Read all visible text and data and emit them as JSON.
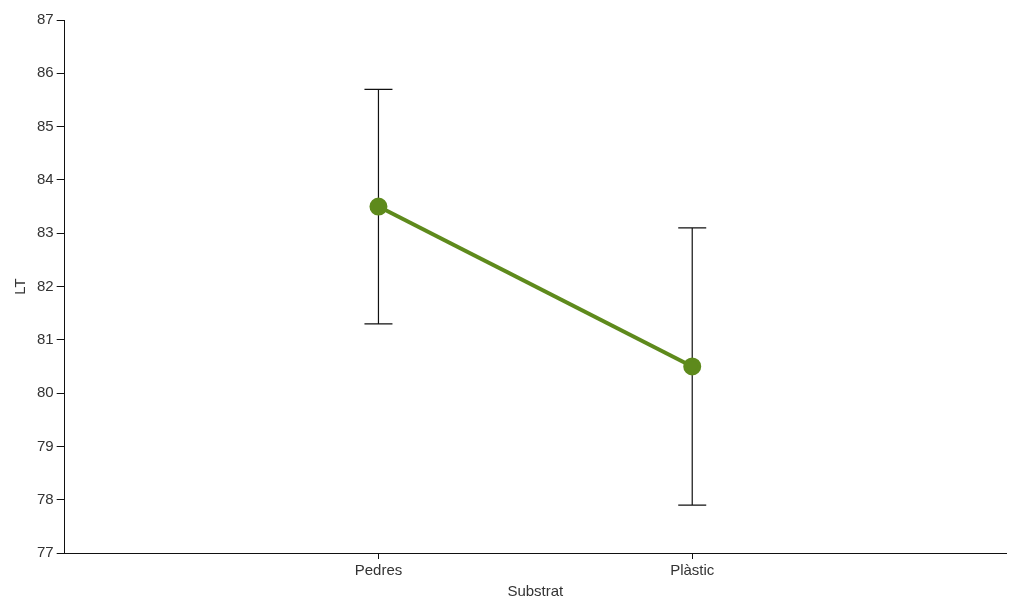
{
  "chart_data": {
    "type": "line",
    "xlabel": "Substrat",
    "ylabel": "LT",
    "categories": [
      "Pedres",
      "Plàstic"
    ],
    "series": [
      {
        "color": "#5e8a1c",
        "values": [
          83.5,
          80.5
        ],
        "errors": [
          [
            81.3,
            85.7
          ],
          [
            77.9,
            83.1
          ]
        ]
      }
    ],
    "ylim": [
      77,
      87
    ],
    "yticks": [
      77,
      78,
      79,
      80,
      81,
      82,
      83,
      84,
      85,
      86,
      87
    ],
    "grid": false,
    "legend": false,
    "marker": "circle",
    "line_style": "solid"
  }
}
